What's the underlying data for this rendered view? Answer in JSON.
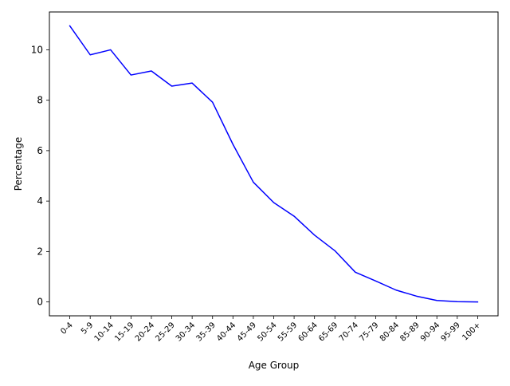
{
  "chart_data": {
    "type": "line",
    "title": "",
    "xlabel": "Age Group",
    "ylabel": "Percentage",
    "categories": [
      "0-4",
      "5-9",
      "10-14",
      "15-19",
      "20-24",
      "25-29",
      "30-34",
      "35-39",
      "40-44",
      "45-49",
      "50-54",
      "55-59",
      "60-64",
      "65-69",
      "70-74",
      "75-79",
      "80-84",
      "85-89",
      "90-94",
      "95-99",
      "100+"
    ],
    "series": [
      {
        "values": [
          10.95,
          9.8,
          10.0,
          9.0,
          9.16,
          8.56,
          8.68,
          7.92,
          6.25,
          4.75,
          3.94,
          3.4,
          2.65,
          2.03,
          1.18,
          0.83,
          0.47,
          0.23,
          0.06,
          0.01,
          0.0
        ],
        "color": "#0000ff"
      }
    ],
    "yticks": [
      "0",
      "2",
      "4",
      "6",
      "8",
      "10"
    ],
    "ylim": [
      -0.55,
      11.5
    ],
    "grid": false,
    "legend": "none"
  }
}
